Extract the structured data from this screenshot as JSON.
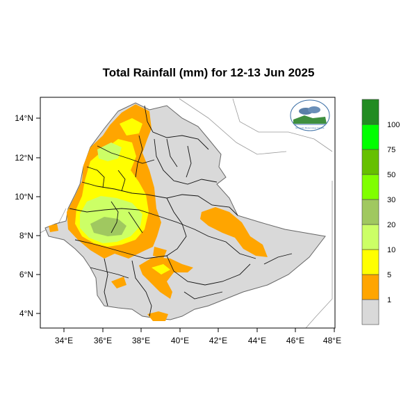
{
  "title": "Total Rainfall (mm) for 12-13 Jun 2025",
  "map": {
    "lon_ticks": [
      "34°E",
      "36°E",
      "38°E",
      "40°E",
      "42°E",
      "44°E",
      "46°E",
      "48°E"
    ],
    "lat_ticks": [
      "14°N",
      "12°N",
      "10°N",
      "8°N",
      "6°N",
      "4°N"
    ],
    "background_color": "#d9d9d9",
    "logo_text": "Ethiopian Meteorology Institute"
  },
  "legend": {
    "labels": [
      "1",
      "5",
      "10",
      "20",
      "30",
      "50",
      "75",
      "100"
    ],
    "colors": [
      "#d9d9d9",
      "#ffa500",
      "#ffff00",
      "#ccff66",
      "#a0c860",
      "#80ff00",
      "#66c000",
      "#00ff00",
      "#228b22"
    ]
  }
}
